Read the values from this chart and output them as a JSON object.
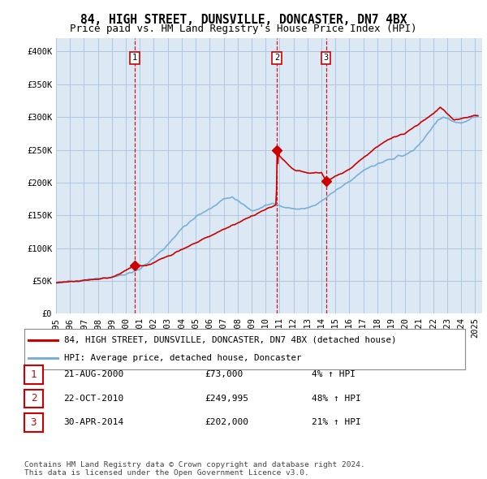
{
  "title": "84, HIGH STREET, DUNSVILLE, DONCASTER, DN7 4BX",
  "subtitle": "Price paid vs. HM Land Registry's House Price Index (HPI)",
  "ylabel_ticks": [
    "£0",
    "£50K",
    "£100K",
    "£150K",
    "£200K",
    "£250K",
    "£300K",
    "£350K",
    "£400K"
  ],
  "ytick_values": [
    0,
    50000,
    100000,
    150000,
    200000,
    250000,
    300000,
    350000,
    400000
  ],
  "ylim": [
    0,
    420000
  ],
  "xlim_start": 1995.0,
  "xlim_end": 2025.5,
  "sale_points": [
    {
      "num": 1,
      "year": 2000.64,
      "price": 73000,
      "date": "21-AUG-2000",
      "pct": "4%"
    },
    {
      "num": 2,
      "year": 2010.81,
      "price": 249995,
      "date": "22-OCT-2010",
      "pct": "48%"
    },
    {
      "num": 3,
      "year": 2014.33,
      "price": 202000,
      "date": "30-APR-2014",
      "pct": "21%"
    }
  ],
  "legend_entries": [
    {
      "label": "84, HIGH STREET, DUNSVILLE, DONCASTER, DN7 4BX (detached house)",
      "color": "#cc0000",
      "lw": 2
    },
    {
      "label": "HPI: Average price, detached house, Doncaster",
      "color": "#7ab0d4",
      "lw": 2
    }
  ],
  "footnote": "Contains HM Land Registry data © Crown copyright and database right 2024.\nThis data is licensed under the Open Government Licence v3.0.",
  "bg_color": "#ffffff",
  "chart_bg_color": "#dce9f5",
  "grid_color": "#b0c8e0",
  "sale_color": "#cc0000",
  "hpi_color": "#7ab0d4",
  "title_fontsize": 10.5,
  "subtitle_fontsize": 9,
  "tick_fontsize": 7.5,
  "xtick_years": [
    1995,
    1996,
    1997,
    1998,
    1999,
    2000,
    2001,
    2002,
    2003,
    2004,
    2005,
    2006,
    2007,
    2008,
    2009,
    2010,
    2011,
    2012,
    2013,
    2014,
    2015,
    2016,
    2017,
    2018,
    2019,
    2020,
    2021,
    2022,
    2023,
    2024,
    2025
  ],
  "hpi_anchors": [
    [
      1995.0,
      47000
    ],
    [
      1996.0,
      49000
    ],
    [
      1997.0,
      51000
    ],
    [
      1998.0,
      53000
    ],
    [
      1999.0,
      56000
    ],
    [
      2000.0,
      60000
    ],
    [
      2001.0,
      68000
    ],
    [
      2002.0,
      85000
    ],
    [
      2003.0,
      105000
    ],
    [
      2004.0,
      130000
    ],
    [
      2005.0,
      148000
    ],
    [
      2006.0,
      160000
    ],
    [
      2007.0,
      175000
    ],
    [
      2007.6,
      178000
    ],
    [
      2008.0,
      172000
    ],
    [
      2008.5,
      165000
    ],
    [
      2009.0,
      158000
    ],
    [
      2009.5,
      160000
    ],
    [
      2010.0,
      165000
    ],
    [
      2010.5,
      168000
    ],
    [
      2011.0,
      165000
    ],
    [
      2011.5,
      162000
    ],
    [
      2012.0,
      160000
    ],
    [
      2012.5,
      160000
    ],
    [
      2013.0,
      162000
    ],
    [
      2013.5,
      165000
    ],
    [
      2014.0,
      172000
    ],
    [
      2014.5,
      180000
    ],
    [
      2015.0,
      188000
    ],
    [
      2015.5,
      195000
    ],
    [
      2016.0,
      202000
    ],
    [
      2016.5,
      210000
    ],
    [
      2017.0,
      218000
    ],
    [
      2017.5,
      224000
    ],
    [
      2018.0,
      228000
    ],
    [
      2018.5,
      232000
    ],
    [
      2019.0,
      236000
    ],
    [
      2019.5,
      240000
    ],
    [
      2020.0,
      242000
    ],
    [
      2020.5,
      248000
    ],
    [
      2021.0,
      258000
    ],
    [
      2021.5,
      272000
    ],
    [
      2022.0,
      285000
    ],
    [
      2022.3,
      295000
    ],
    [
      2022.7,
      300000
    ],
    [
      2023.0,
      298000
    ],
    [
      2023.5,
      292000
    ],
    [
      2024.0,
      290000
    ],
    [
      2024.5,
      295000
    ],
    [
      2025.0,
      300000
    ],
    [
      2025.2,
      302000
    ]
  ],
  "sale_anchors": [
    [
      1995.0,
      47000
    ],
    [
      1999.0,
      55000
    ],
    [
      2000.64,
      73000
    ],
    [
      2001.5,
      73000
    ],
    [
      2010.8,
      167000
    ],
    [
      2010.81,
      249995
    ],
    [
      2011.0,
      240000
    ],
    [
      2011.5,
      230000
    ],
    [
      2012.0,
      220000
    ],
    [
      2013.0,
      215000
    ],
    [
      2014.0,
      215000
    ],
    [
      2014.33,
      202000
    ],
    [
      2015.0,
      210000
    ],
    [
      2016.0,
      220000
    ],
    [
      2017.0,
      238000
    ],
    [
      2018.0,
      255000
    ],
    [
      2019.0,
      268000
    ],
    [
      2020.0,
      275000
    ],
    [
      2021.0,
      290000
    ],
    [
      2022.0,
      305000
    ],
    [
      2022.5,
      315000
    ],
    [
      2023.0,
      305000
    ],
    [
      2023.5,
      295000
    ],
    [
      2024.0,
      298000
    ],
    [
      2025.0,
      302000
    ],
    [
      2025.2,
      303000
    ]
  ]
}
